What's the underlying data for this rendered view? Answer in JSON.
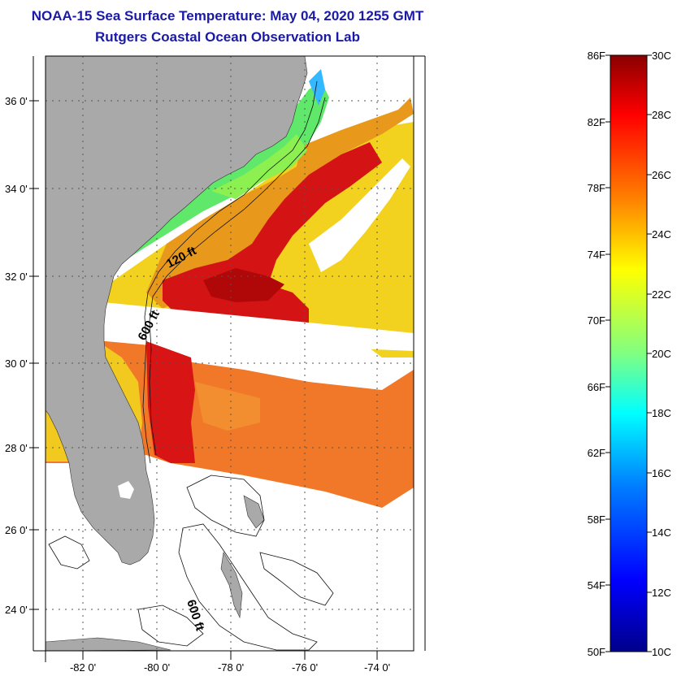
{
  "header": {
    "title": "NOAA-15 Sea Surface Temperature:  May 04, 2020 1255 GMT",
    "subtitle": "Rutgers Coastal Ocean Observation Lab"
  },
  "map": {
    "latitude_labels": [
      "36 0'",
      "34 0'",
      "32 0'",
      "30 0'",
      "28 0'",
      "26 0'",
      "24 0'"
    ],
    "longitude_labels": [
      "-82 0'",
      "-80 0'",
      "-78 0'",
      "-76 0'",
      "-74 0'"
    ],
    "depth_contours": [
      "120 ft",
      "600 ft",
      "600 ft"
    ],
    "colors": {
      "land": "#a9a9a9",
      "no_data": "#ffffff",
      "grid": "#555555"
    }
  },
  "colorbar": {
    "fahrenheit_labels": [
      "86F",
      "82F",
      "78F",
      "74F",
      "70F",
      "66F",
      "62F",
      "58F",
      "54F",
      "50F"
    ],
    "celsius_labels": [
      "30C",
      "28C",
      "26C",
      "24C",
      "22C",
      "20C",
      "18C",
      "16C",
      "14C",
      "12C",
      "10C"
    ],
    "colors": [
      "#00008a",
      "#0000ff",
      "#0080ff",
      "#00ffff",
      "#80ff80",
      "#ffff00",
      "#ff8000",
      "#ff0000",
      "#8a0000"
    ]
  }
}
